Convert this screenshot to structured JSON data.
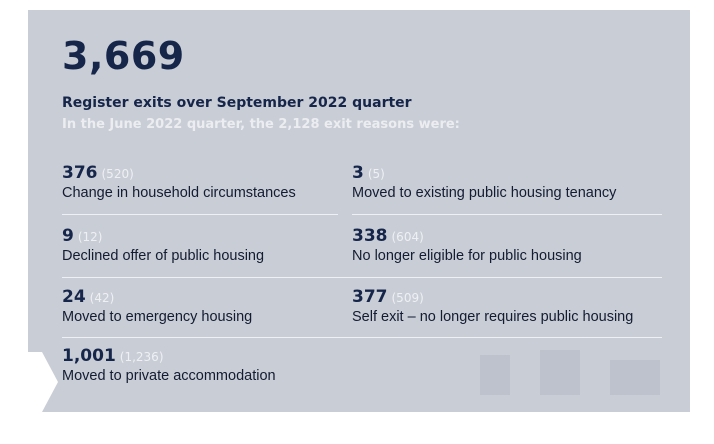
{
  "headline_number": "3,669",
  "headline_label": "Register exits over September 2022 quarter",
  "subline": "In the June 2022 quarter, the 2,128 exit reasons were:",
  "stats": [
    {
      "value": "376",
      "prev": "(520)",
      "label": "Change in household circumstances"
    },
    {
      "value": "3",
      "prev": "(5)",
      "label": "Moved to existing public housing tenancy"
    },
    {
      "value": "9",
      "prev": "(12)",
      "label": "Declined offer of public housing"
    },
    {
      "value": "338",
      "prev": "(604)",
      "label": "No longer eligible for public housing"
    },
    {
      "value": "24",
      "prev": "(42)",
      "label": "Moved to emergency housing"
    },
    {
      "value": "377",
      "prev": "(509)",
      "label": "Self exit – no longer requires public housing"
    },
    {
      "value": "1,001",
      "prev": "(1,236)",
      "label": "Moved to private accommodation"
    }
  ],
  "colors": {
    "panel_bg": "#c9cdd5",
    "primary_text": "#16254a",
    "muted_text": "#ebedf1",
    "divider": "#eef0f4"
  }
}
